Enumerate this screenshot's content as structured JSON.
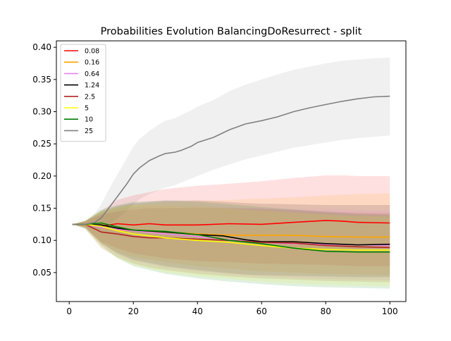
{
  "chart_data": {
    "type": "line",
    "title": "Probabilities Evolution BalancingDoResurrect  - split",
    "xlabel": "",
    "ylabel": "",
    "xlim": [
      -4,
      105
    ],
    "ylim": [
      0.005,
      0.41
    ],
    "xticks": [
      0,
      20,
      40,
      60,
      80,
      100
    ],
    "yticks": [
      0.05,
      0.1,
      0.15,
      0.2,
      0.25,
      0.3,
      0.35,
      0.4
    ],
    "xtick_labels": [
      "0",
      "20",
      "40",
      "60",
      "80",
      "100"
    ],
    "ytick_labels": [
      "0.05",
      "0.10",
      "0.15",
      "0.20",
      "0.25",
      "0.30",
      "0.35",
      "0.40"
    ],
    "grid": false,
    "legend_position": "upper-left",
    "series": [
      {
        "name": "0.08",
        "color": "#ff0000",
        "x": [
          1,
          5,
          10,
          15,
          20,
          25,
          30,
          40,
          50,
          60,
          70,
          80,
          85,
          90,
          100
        ],
        "y": [
          0.125,
          0.125,
          0.122,
          0.126,
          0.124,
          0.126,
          0.124,
          0.124,
          0.126,
          0.125,
          0.128,
          0.131,
          0.13,
          0.128,
          0.127
        ],
        "band_lo": [
          0.125,
          0.12,
          0.098,
          0.088,
          0.08,
          0.076,
          0.072,
          0.068,
          0.066,
          0.064,
          0.063,
          0.062,
          0.061,
          0.06,
          0.06
        ],
        "band_hi": [
          0.125,
          0.13,
          0.146,
          0.163,
          0.17,
          0.175,
          0.18,
          0.185,
          0.188,
          0.192,
          0.197,
          0.201,
          0.201,
          0.2,
          0.2
        ]
      },
      {
        "name": "0.16",
        "color": "#ffa500",
        "x": [
          1,
          5,
          10,
          15,
          20,
          30,
          40,
          50,
          60,
          70,
          80,
          90,
          100
        ],
        "y": [
          0.125,
          0.125,
          0.12,
          0.116,
          0.115,
          0.113,
          0.11,
          0.108,
          0.108,
          0.108,
          0.106,
          0.105,
          0.105
        ],
        "band_lo": [
          0.125,
          0.12,
          0.095,
          0.082,
          0.074,
          0.066,
          0.06,
          0.056,
          0.052,
          0.05,
          0.048,
          0.047,
          0.046
        ],
        "band_hi": [
          0.125,
          0.13,
          0.143,
          0.15,
          0.155,
          0.16,
          0.162,
          0.163,
          0.165,
          0.167,
          0.17,
          0.172,
          0.173
        ]
      },
      {
        "name": "0.64",
        "color": "#ee82ee",
        "x": [
          1,
          5,
          10,
          15,
          20,
          30,
          40,
          50,
          60,
          70,
          80,
          90,
          100
        ],
        "y": [
          0.125,
          0.125,
          0.12,
          0.117,
          0.115,
          0.11,
          0.106,
          0.101,
          0.097,
          0.095,
          0.094,
          0.093,
          0.092
        ],
        "band_lo": [
          0.125,
          0.12,
          0.094,
          0.078,
          0.068,
          0.058,
          0.052,
          0.047,
          0.044,
          0.042,
          0.04,
          0.039,
          0.038
        ],
        "band_hi": [
          0.125,
          0.13,
          0.141,
          0.148,
          0.152,
          0.155,
          0.154,
          0.152,
          0.15,
          0.149,
          0.148,
          0.147,
          0.146
        ]
      },
      {
        "name": "1.24",
        "color": "#000000",
        "x": [
          1,
          5,
          10,
          15,
          20,
          30,
          40,
          48,
          55,
          60,
          70,
          80,
          90,
          100
        ],
        "y": [
          0.125,
          0.125,
          0.124,
          0.119,
          0.116,
          0.113,
          0.109,
          0.107,
          0.101,
          0.098,
          0.098,
          0.095,
          0.093,
          0.094
        ],
        "band_lo": [
          0.125,
          0.12,
          0.096,
          0.08,
          0.07,
          0.06,
          0.054,
          0.05,
          0.047,
          0.046,
          0.045,
          0.044,
          0.043,
          0.043
        ],
        "band_hi": [
          0.125,
          0.13,
          0.145,
          0.153,
          0.158,
          0.162,
          0.162,
          0.16,
          0.158,
          0.157,
          0.156,
          0.155,
          0.155,
          0.155
        ]
      },
      {
        "name": "2.5",
        "color": "#b22222",
        "x": [
          1,
          5,
          10,
          15,
          20,
          25,
          30,
          40,
          50,
          60,
          70,
          80,
          90,
          100
        ],
        "y": [
          0.125,
          0.125,
          0.113,
          0.11,
          0.106,
          0.104,
          0.104,
          0.102,
          0.1,
          0.097,
          0.096,
          0.092,
          0.09,
          0.089
        ],
        "band_lo": [
          0.125,
          0.118,
          0.088,
          0.074,
          0.064,
          0.058,
          0.054,
          0.048,
          0.044,
          0.041,
          0.039,
          0.037,
          0.036,
          0.035
        ],
        "band_hi": [
          0.125,
          0.13,
          0.14,
          0.145,
          0.148,
          0.15,
          0.15,
          0.151,
          0.15,
          0.149,
          0.147,
          0.145,
          0.143,
          0.142
        ]
      },
      {
        "name": "5",
        "color": "#ffff00",
        "x": [
          1,
          5,
          10,
          15,
          20,
          30,
          40,
          50,
          60,
          70,
          80,
          90,
          100
        ],
        "y": [
          0.125,
          0.125,
          0.122,
          0.115,
          0.11,
          0.104,
          0.1,
          0.097,
          0.092,
          0.088,
          0.086,
          0.085,
          0.085
        ],
        "band_lo": [
          0.125,
          0.118,
          0.09,
          0.073,
          0.062,
          0.05,
          0.044,
          0.04,
          0.036,
          0.033,
          0.031,
          0.03,
          0.029
        ],
        "band_hi": [
          0.125,
          0.131,
          0.146,
          0.152,
          0.155,
          0.155,
          0.153,
          0.15,
          0.146,
          0.143,
          0.14,
          0.138,
          0.137
        ]
      },
      {
        "name": "10",
        "color": "#008000",
        "x": [
          1,
          5,
          10,
          15,
          20,
          30,
          40,
          50,
          60,
          70,
          80,
          90,
          100
        ],
        "y": [
          0.125,
          0.125,
          0.127,
          0.121,
          0.116,
          0.114,
          0.109,
          0.1,
          0.095,
          0.088,
          0.083,
          0.082,
          0.082
        ],
        "band_lo": [
          0.125,
          0.118,
          0.092,
          0.072,
          0.06,
          0.048,
          0.041,
          0.036,
          0.032,
          0.029,
          0.027,
          0.026,
          0.025
        ],
        "band_hi": [
          0.125,
          0.131,
          0.148,
          0.155,
          0.16,
          0.162,
          0.16,
          0.156,
          0.152,
          0.148,
          0.144,
          0.141,
          0.14
        ]
      },
      {
        "name": "25",
        "color": "#808080",
        "x": [
          1,
          5,
          8,
          10,
          12,
          15,
          18,
          20,
          22,
          25,
          28,
          30,
          33,
          35,
          38,
          40,
          45,
          50,
          55,
          60,
          65,
          70,
          75,
          80,
          85,
          90,
          95,
          100
        ],
        "y": [
          0.125,
          0.125,
          0.128,
          0.135,
          0.148,
          0.168,
          0.188,
          0.203,
          0.213,
          0.224,
          0.231,
          0.235,
          0.237,
          0.24,
          0.246,
          0.252,
          0.26,
          0.272,
          0.281,
          0.286,
          0.292,
          0.3,
          0.306,
          0.311,
          0.316,
          0.32,
          0.323,
          0.324
        ],
        "band_lo": [
          0.125,
          0.122,
          0.116,
          0.118,
          0.124,
          0.134,
          0.146,
          0.156,
          0.164,
          0.172,
          0.178,
          0.182,
          0.186,
          0.19,
          0.196,
          0.2,
          0.21,
          0.218,
          0.226,
          0.232,
          0.238,
          0.244,
          0.248,
          0.252,
          0.256,
          0.259,
          0.261,
          0.263
        ],
        "band_hi": [
          0.125,
          0.128,
          0.142,
          0.156,
          0.176,
          0.202,
          0.228,
          0.246,
          0.258,
          0.27,
          0.28,
          0.286,
          0.29,
          0.295,
          0.302,
          0.308,
          0.318,
          0.332,
          0.342,
          0.35,
          0.358,
          0.365,
          0.37,
          0.375,
          0.379,
          0.381,
          0.383,
          0.384
        ]
      }
    ]
  }
}
